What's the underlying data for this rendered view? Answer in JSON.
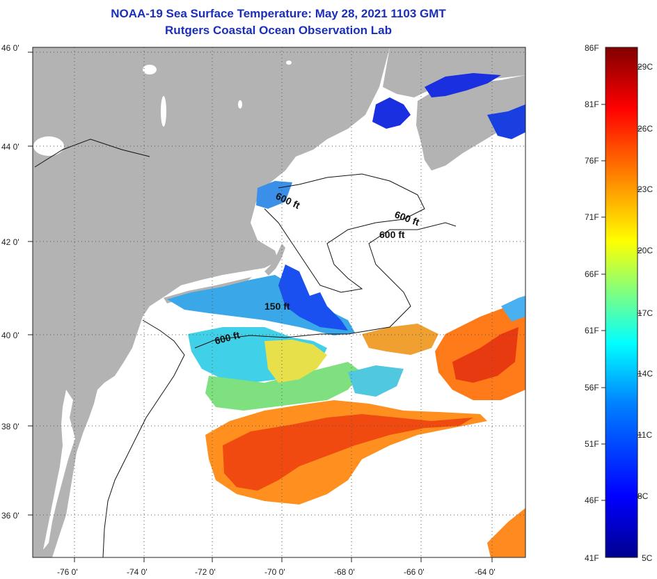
{
  "title": {
    "line1": "NOAA-19 Sea Surface Temperature:  May 28, 2021 1103 GMT",
    "line2": "Rutgers Coastal Ocean Observation Lab"
  },
  "map": {
    "lat_ticks": [
      "46 0'",
      "44 0'",
      "42 0'",
      "40 0'",
      "38 0'",
      "36 0'"
    ],
    "lon_ticks": [
      "-76 0'",
      "-74 0'",
      "-72 0'",
      "-70 0'",
      "-68 0'",
      "-66 0'",
      "-64 0'"
    ],
    "contour_labels": [
      "600 ft",
      "600 ft",
      "600 ft",
      "150 ft",
      "600 ft"
    ],
    "colors": {
      "land": "#b3b3b3",
      "cloud_nodata": "#ffffff",
      "grid": "#555555"
    }
  },
  "colorbar": {
    "fahrenheit_labels": [
      "86F",
      "81F",
      "76F",
      "71F",
      "66F",
      "61F",
      "56F",
      "51F",
      "46F",
      "41F"
    ],
    "celsius_labels": [
      "29C",
      "26C",
      "23C",
      "20C",
      "17C",
      "14C",
      "11C",
      "8C",
      "5C"
    ],
    "gradient": [
      "#00008f",
      "#0000ff",
      "#0080ff",
      "#00ffff",
      "#80ff80",
      "#ffff00",
      "#ff8000",
      "#ff0000",
      "#800000"
    ]
  }
}
